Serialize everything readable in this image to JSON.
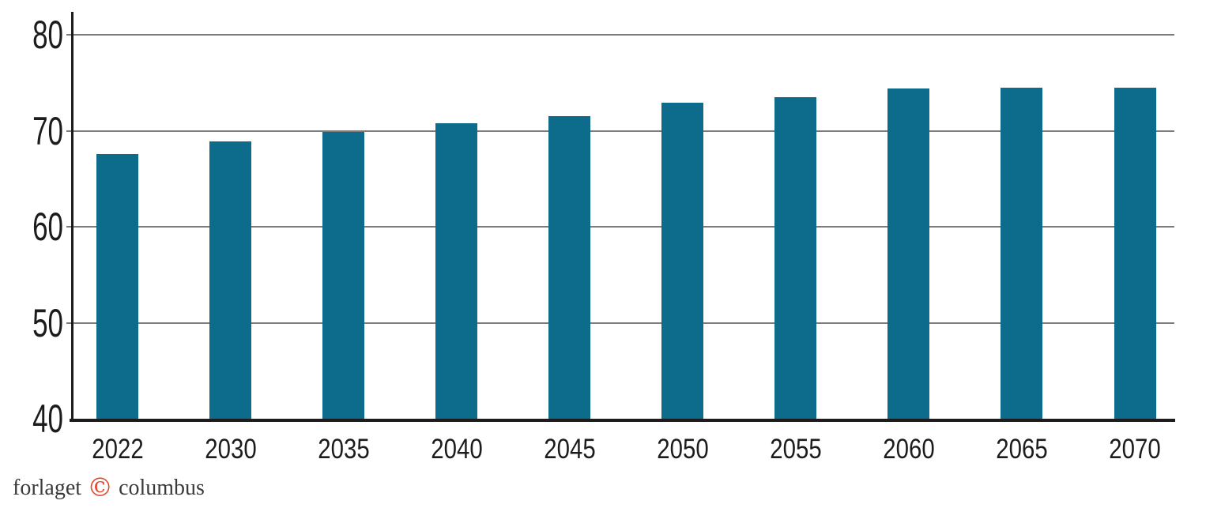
{
  "chart_data": {
    "type": "bar",
    "title": "",
    "xlabel": "",
    "ylabel": "",
    "categories": [
      "2022",
      "2030",
      "2035",
      "2040",
      "2045",
      "2050",
      "2055",
      "2060",
      "2065",
      "2070"
    ],
    "values": [
      67.6,
      68.9,
      69.9,
      70.8,
      71.5,
      72.9,
      73.5,
      74.4,
      74.5,
      74.5
    ],
    "ylim": [
      40,
      80
    ],
    "yticks": [
      40,
      50,
      60,
      70,
      80
    ],
    "grid": "horizontal-gridlines-at-yticks",
    "legend": "none",
    "bar_color": "#0d6b8c",
    "gridline_color": "#7c7c7c",
    "axis_color": "#1c1c1c"
  },
  "footer": {
    "prefix": "forlaget",
    "copyright_symbol": "©",
    "suffix": "columbus",
    "accent_color": "#e04b33",
    "text_color": "#3a3a3a"
  }
}
